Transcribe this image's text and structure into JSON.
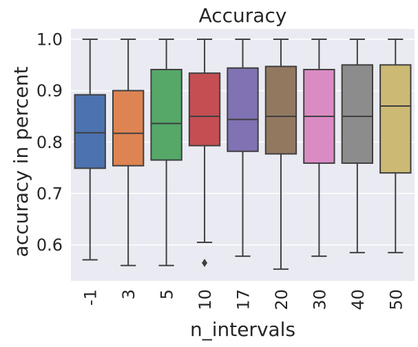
{
  "chart_data": {
    "type": "box",
    "title": "Accuracy",
    "xlabel": "n_intervals",
    "ylabel": "accuracy in percent",
    "ylim": [
      0.53,
      1.02
    ],
    "yticks": [
      "0.6",
      "0.7",
      "0.8",
      "0.9",
      "1.0"
    ],
    "ytick_values": [
      0.6,
      0.7,
      0.8,
      0.9,
      1.0
    ],
    "grid": true,
    "background": "#eaeaf2",
    "categories": [
      "-1",
      "3",
      "5",
      "10",
      "17",
      "20",
      "30",
      "40",
      "50"
    ],
    "boxes": [
      {
        "category": "-1",
        "whisker_low": 0.571,
        "q1": 0.749,
        "median": 0.818,
        "q3": 0.892,
        "whisker_high": 1.0,
        "outliers": [],
        "color": "#4c72b0"
      },
      {
        "category": "3",
        "whisker_low": 0.56,
        "q1": 0.754,
        "median": 0.817,
        "q3": 0.9,
        "whisker_high": 1.0,
        "outliers": [],
        "color": "#dd8452"
      },
      {
        "category": "5",
        "whisker_low": 0.56,
        "q1": 0.765,
        "median": 0.836,
        "q3": 0.941,
        "whisker_high": 1.0,
        "outliers": [],
        "color": "#55a868"
      },
      {
        "category": "10",
        "whisker_low": 0.605,
        "q1": 0.793,
        "median": 0.85,
        "q3": 0.934,
        "whisker_high": 1.0,
        "outliers": [
          0.565
        ],
        "color": "#c44e52"
      },
      {
        "category": "17",
        "whisker_low": 0.578,
        "q1": 0.782,
        "median": 0.844,
        "q3": 0.944,
        "whisker_high": 1.0,
        "outliers": [],
        "color": "#8172b3"
      },
      {
        "category": "20",
        "whisker_low": 0.553,
        "q1": 0.777,
        "median": 0.85,
        "q3": 0.947,
        "whisker_high": 1.0,
        "outliers": [],
        "color": "#937860"
      },
      {
        "category": "30",
        "whisker_low": 0.578,
        "q1": 0.759,
        "median": 0.85,
        "q3": 0.941,
        "whisker_high": 1.0,
        "outliers": [],
        "color": "#da8bc3"
      },
      {
        "category": "40",
        "whisker_low": 0.585,
        "q1": 0.759,
        "median": 0.85,
        "q3": 0.95,
        "whisker_high": 1.0,
        "outliers": [],
        "color": "#8c8c8c"
      },
      {
        "category": "50",
        "whisker_low": 0.585,
        "q1": 0.74,
        "median": 0.87,
        "q3": 0.95,
        "whisker_high": 1.0,
        "outliers": [],
        "color": "#ccb974"
      }
    ]
  }
}
